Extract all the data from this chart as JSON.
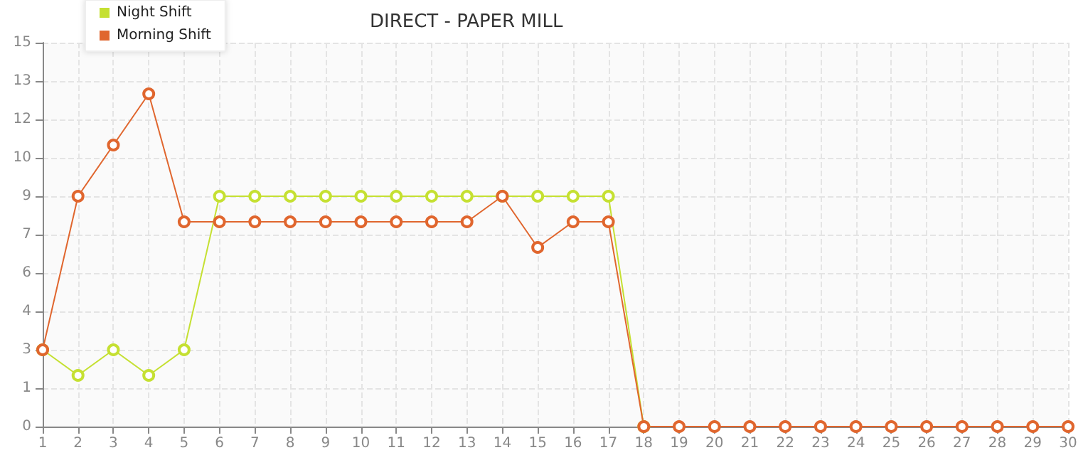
{
  "chart_data": {
    "type": "line",
    "title": "DIRECT - PAPER MILL",
    "x": [
      1,
      2,
      3,
      4,
      5,
      6,
      7,
      8,
      9,
      10,
      11,
      12,
      13,
      14,
      15,
      16,
      17,
      18,
      19,
      20,
      21,
      22,
      23,
      24,
      25,
      26,
      27,
      28,
      29,
      30
    ],
    "xlim": [
      1,
      30
    ],
    "xticks": [
      1,
      2,
      3,
      4,
      5,
      6,
      7,
      8,
      9,
      10,
      11,
      12,
      13,
      14,
      15,
      16,
      17,
      18,
      19,
      20,
      21,
      22,
      23,
      24,
      25,
      26,
      27,
      28,
      29,
      30
    ],
    "ylim": [
      0,
      15
    ],
    "yticks": [
      0,
      {
        "value": 1.5,
        "label": "1"
      },
      3,
      {
        "value": 4.5,
        "label": "4"
      },
      6,
      {
        "value": 7.5,
        "label": "7"
      },
      9,
      {
        "value": 10.5,
        "label": "10"
      },
      12,
      {
        "value": 13.5,
        "label": "13"
      },
      15
    ],
    "series": [
      {
        "name": "Night Shift",
        "color": "#c5e032",
        "values": [
          3,
          2,
          3,
          2,
          3,
          9,
          9,
          9,
          9,
          9,
          9,
          9,
          9,
          9,
          9,
          9,
          9,
          0,
          null,
          null,
          null,
          null,
          null,
          null,
          null,
          null,
          null,
          null,
          null,
          null
        ]
      },
      {
        "name": "Morning Shift",
        "color": "#e0662e",
        "values": [
          3,
          9,
          11,
          13,
          8,
          8,
          8,
          8,
          8,
          8,
          8,
          8,
          8,
          9,
          7,
          8,
          8,
          0,
          0,
          0,
          0,
          0,
          0,
          0,
          0,
          0,
          0,
          0,
          0,
          0
        ]
      }
    ],
    "grid": true,
    "legend": "top left",
    "marker": "circle",
    "line_style": "solid"
  }
}
